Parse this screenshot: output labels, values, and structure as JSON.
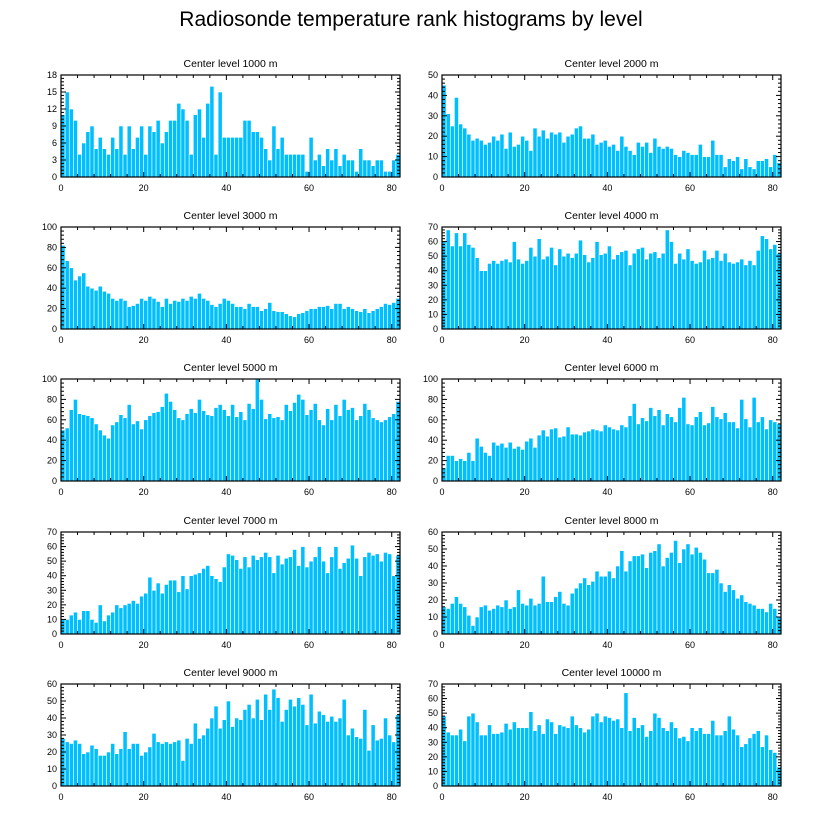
{
  "title": "Radiosonde temperature rank histograms by level",
  "colors": {
    "bar": "#00bfff",
    "bar_edge": "#ffffff",
    "axis": "#000000"
  },
  "chart_data": [
    {
      "type": "bar",
      "title": "Center level 1000 m",
      "xlabel": "",
      "ylabel": "",
      "xlim": [
        0,
        82
      ],
      "ylim": [
        0,
        18
      ],
      "xticks": [
        0,
        20,
        40,
        60,
        80
      ],
      "yticks": [
        0,
        3,
        6,
        9,
        12,
        15,
        18
      ],
      "values": [
        11,
        15,
        12,
        10,
        4,
        6,
        8,
        9,
        5,
        7,
        5,
        4,
        7,
        5,
        9,
        4,
        9,
        5,
        7,
        9,
        4,
        9,
        8,
        10,
        6,
        8,
        10,
        10,
        13,
        12,
        10,
        4,
        11,
        12,
        7,
        13,
        16,
        4,
        15,
        7,
        7,
        7,
        7,
        7,
        10,
        10,
        8,
        8,
        7,
        5,
        3,
        9,
        5,
        7,
        4,
        4,
        4,
        4,
        4,
        1,
        7,
        3,
        4,
        2,
        5,
        3,
        5,
        2,
        4,
        3,
        3,
        1,
        5,
        3,
        3,
        2,
        3,
        3,
        1,
        1,
        3,
        4
      ]
    },
    {
      "type": "bar",
      "title": "Center level 2000 m",
      "xlabel": "",
      "ylabel": "",
      "xlim": [
        0,
        82
      ],
      "ylim": [
        0,
        50
      ],
      "xticks": [
        0,
        20,
        40,
        60,
        80
      ],
      "yticks": [
        0,
        10,
        20,
        30,
        40,
        50
      ],
      "values": [
        45,
        31,
        25,
        39,
        26,
        24,
        21,
        18,
        19,
        18,
        16,
        17,
        20,
        18,
        21,
        14,
        22,
        15,
        16,
        20,
        18,
        13,
        24,
        20,
        23,
        19,
        22,
        21,
        22,
        17,
        20,
        21,
        24,
        25,
        19,
        19,
        21,
        16,
        17,
        18,
        15,
        16,
        13,
        20,
        15,
        13,
        11,
        17,
        15,
        17,
        12,
        19,
        15,
        14,
        15,
        14,
        11,
        10,
        13,
        12,
        11,
        11,
        16,
        10,
        10,
        18,
        11,
        11,
        5,
        9,
        8,
        10,
        4,
        9,
        5,
        4,
        8,
        8,
        9,
        5,
        11,
        7
      ]
    },
    {
      "type": "bar",
      "title": "Center level 3000 m",
      "xlabel": "",
      "ylabel": "",
      "xlim": [
        0,
        82
      ],
      "ylim": [
        0,
        100
      ],
      "xticks": [
        0,
        20,
        40,
        60,
        80
      ],
      "yticks": [
        0,
        20,
        40,
        60,
        80,
        100
      ],
      "values": [
        82,
        67,
        60,
        48,
        52,
        55,
        42,
        40,
        38,
        42,
        37,
        35,
        30,
        28,
        30,
        28,
        22,
        23,
        25,
        30,
        28,
        32,
        30,
        27,
        22,
        30,
        25,
        28,
        27,
        30,
        28,
        32,
        30,
        35,
        30,
        28,
        24,
        22,
        25,
        30,
        28,
        25,
        22,
        22,
        20,
        25,
        22,
        22,
        18,
        20,
        26,
        18,
        17,
        17,
        15,
        13,
        12,
        15,
        16,
        18,
        20,
        20,
        22,
        22,
        23,
        20,
        25,
        25,
        20,
        22,
        20,
        18,
        17,
        20,
        16,
        18,
        20,
        22,
        25,
        24,
        26,
        30
      ]
    },
    {
      "type": "bar",
      "title": "Center level 4000 m",
      "xlabel": "",
      "ylabel": "",
      "xlim": [
        0,
        82
      ],
      "ylim": [
        0,
        70
      ],
      "xticks": [
        0,
        20,
        40,
        60,
        80
      ],
      "yticks": [
        0,
        10,
        20,
        30,
        40,
        50,
        60,
        70
      ],
      "values": [
        60,
        68,
        57,
        66,
        57,
        66,
        58,
        56,
        49,
        40,
        40,
        45,
        47,
        45,
        47,
        48,
        46,
        60,
        48,
        45,
        47,
        56,
        50,
        62,
        48,
        50,
        56,
        44,
        55,
        50,
        52,
        49,
        52,
        61,
        51,
        46,
        49,
        60,
        51,
        52,
        57,
        48,
        51,
        53,
        54,
        44,
        52,
        55,
        56,
        48,
        52,
        53,
        49,
        52,
        68,
        60,
        45,
        52,
        48,
        55,
        47,
        45,
        46,
        54,
        48,
        49,
        54,
        47,
        52,
        46,
        45,
        46,
        48,
        44,
        47,
        44,
        54,
        64,
        62,
        55,
        58,
        52
      ]
    },
    {
      "type": "bar",
      "title": "Center level 5000 m",
      "xlabel": "",
      "ylabel": "",
      "xlim": [
        0,
        82
      ],
      "ylim": [
        0,
        100
      ],
      "xticks": [
        0,
        20,
        40,
        60,
        80
      ],
      "yticks": [
        0,
        20,
        40,
        60,
        80,
        100
      ],
      "values": [
        50,
        52,
        70,
        80,
        66,
        65,
        64,
        62,
        56,
        50,
        45,
        42,
        55,
        58,
        65,
        62,
        75,
        56,
        59,
        51,
        60,
        64,
        67,
        68,
        73,
        86,
        78,
        70,
        62,
        60,
        66,
        71,
        67,
        80,
        69,
        65,
        64,
        72,
        75,
        70,
        64,
        75,
        63,
        68,
        60,
        76,
        71,
        100,
        80,
        61,
        66,
        62,
        63,
        60,
        75,
        69,
        77,
        85,
        80,
        65,
        70,
        76,
        60,
        55,
        71,
        60,
        75,
        64,
        80,
        70,
        72,
        60,
        64,
        76,
        70,
        62,
        60,
        58,
        60,
        63,
        66,
        78
      ]
    },
    {
      "type": "bar",
      "title": "Center level 6000 m",
      "xlabel": "",
      "ylabel": "",
      "xlim": [
        0,
        82
      ],
      "ylim": [
        0,
        100
      ],
      "xticks": [
        0,
        20,
        40,
        60,
        80
      ],
      "yticks": [
        0,
        20,
        40,
        60,
        80,
        100
      ],
      "values": [
        13,
        25,
        25,
        20,
        22,
        20,
        28,
        20,
        42,
        34,
        28,
        25,
        38,
        35,
        37,
        33,
        38,
        32,
        34,
        31,
        39,
        42,
        33,
        45,
        50,
        44,
        51,
        52,
        43,
        44,
        53,
        46,
        46,
        45,
        48,
        49,
        51,
        50,
        49,
        55,
        53,
        51,
        50,
        55,
        53,
        64,
        76,
        56,
        62,
        59,
        72,
        64,
        70,
        55,
        66,
        63,
        58,
        72,
        82,
        56,
        55,
        63,
        68,
        55,
        57,
        73,
        63,
        61,
        67,
        58,
        58,
        52,
        80,
        61,
        53,
        82,
        58,
        63,
        51,
        60,
        58,
        56
      ]
    },
    {
      "type": "bar",
      "title": "Center level 7000 m",
      "xlabel": "",
      "ylabel": "",
      "xlim": [
        0,
        82
      ],
      "ylim": [
        0,
        70
      ],
      "xticks": [
        0,
        20,
        40,
        60,
        80
      ],
      "yticks": [
        0,
        10,
        20,
        30,
        40,
        50,
        60,
        70
      ],
      "values": [
        10,
        10,
        13,
        15,
        10,
        16,
        16,
        10,
        8,
        20,
        9,
        13,
        15,
        20,
        18,
        20,
        21,
        23,
        21,
        26,
        28,
        39,
        30,
        35,
        28,
        34,
        37,
        37,
        29,
        40,
        31,
        40,
        41,
        42,
        45,
        47,
        40,
        38,
        36,
        46,
        55,
        54,
        51,
        45,
        53,
        46,
        54,
        51,
        53,
        56,
        53,
        42,
        54,
        48,
        52,
        53,
        58,
        47,
        60,
        46,
        50,
        53,
        60,
        50,
        42,
        53,
        60,
        45,
        49,
        52,
        61,
        52,
        40,
        53,
        56,
        54,
        55,
        50,
        56,
        55,
        40,
        54
      ]
    },
    {
      "type": "bar",
      "title": "Center level 8000 m",
      "xlabel": "",
      "ylabel": "",
      "xlim": [
        0,
        82
      ],
      "ylim": [
        0,
        60
      ],
      "xticks": [
        0,
        20,
        40,
        60,
        80
      ],
      "yticks": [
        0,
        10,
        20,
        30,
        40,
        50,
        60
      ],
      "values": [
        16,
        15,
        18,
        22,
        18,
        16,
        11,
        5,
        10,
        16,
        17,
        14,
        15,
        17,
        16,
        20,
        15,
        16,
        26,
        18,
        17,
        21,
        17,
        18,
        34,
        19,
        19,
        22,
        25,
        18,
        17,
        24,
        27,
        30,
        33,
        29,
        31,
        37,
        34,
        34,
        37,
        33,
        40,
        49,
        37,
        43,
        46,
        46,
        47,
        39,
        48,
        49,
        53,
        40,
        45,
        48,
        55,
        42,
        50,
        53,
        47,
        51,
        48,
        44,
        36,
        36,
        38,
        30,
        25,
        29,
        26,
        21,
        23,
        19,
        18,
        17,
        15,
        15,
        13,
        18,
        15,
        10
      ]
    },
    {
      "type": "bar",
      "title": "Center level 9000 m",
      "xlabel": "",
      "ylabel": "",
      "xlim": [
        0,
        82
      ],
      "ylim": [
        0,
        60
      ],
      "xticks": [
        0,
        20,
        40,
        60,
        80
      ],
      "yticks": [
        0,
        10,
        20,
        30,
        40,
        50,
        60
      ],
      "values": [
        28,
        26,
        25,
        27,
        25,
        19,
        20,
        24,
        22,
        18,
        18,
        20,
        25,
        19,
        22,
        32,
        22,
        25,
        25,
        18,
        20,
        23,
        31,
        26,
        25,
        26,
        25,
        26,
        27,
        15,
        28,
        25,
        37,
        28,
        30,
        34,
        40,
        47,
        34,
        39,
        50,
        35,
        40,
        39,
        45,
        48,
        40,
        51,
        39,
        54,
        45,
        57,
        52,
        38,
        45,
        51,
        47,
        52,
        48,
        36,
        54,
        37,
        44,
        42,
        38,
        41,
        38,
        40,
        51,
        30,
        34,
        29,
        28,
        45,
        21,
        36,
        27,
        28,
        40,
        30,
        26,
        42
      ]
    },
    {
      "type": "bar",
      "title": "Center level 10000 m",
      "xlabel": "",
      "ylabel": "",
      "xlim": [
        0,
        82
      ],
      "ylim": [
        0,
        70
      ],
      "xticks": [
        0,
        20,
        40,
        60,
        80
      ],
      "yticks": [
        0,
        10,
        20,
        30,
        40,
        50,
        60,
        70
      ],
      "values": [
        48,
        37,
        35,
        35,
        39,
        31,
        48,
        50,
        44,
        35,
        35,
        42,
        36,
        36,
        37,
        43,
        39,
        44,
        40,
        40,
        40,
        51,
        38,
        42,
        36,
        46,
        44,
        36,
        42,
        41,
        40,
        48,
        42,
        40,
        37,
        39,
        48,
        50,
        44,
        48,
        47,
        45,
        46,
        40,
        64,
        38,
        47,
        40,
        42,
        34,
        38,
        50,
        47,
        40,
        38,
        44,
        40,
        33,
        34,
        31,
        40,
        38,
        40,
        36,
        36,
        45,
        35,
        35,
        38,
        48,
        39,
        35,
        27,
        29,
        33,
        36,
        38,
        27,
        35,
        25,
        23,
        13
      ]
    }
  ]
}
